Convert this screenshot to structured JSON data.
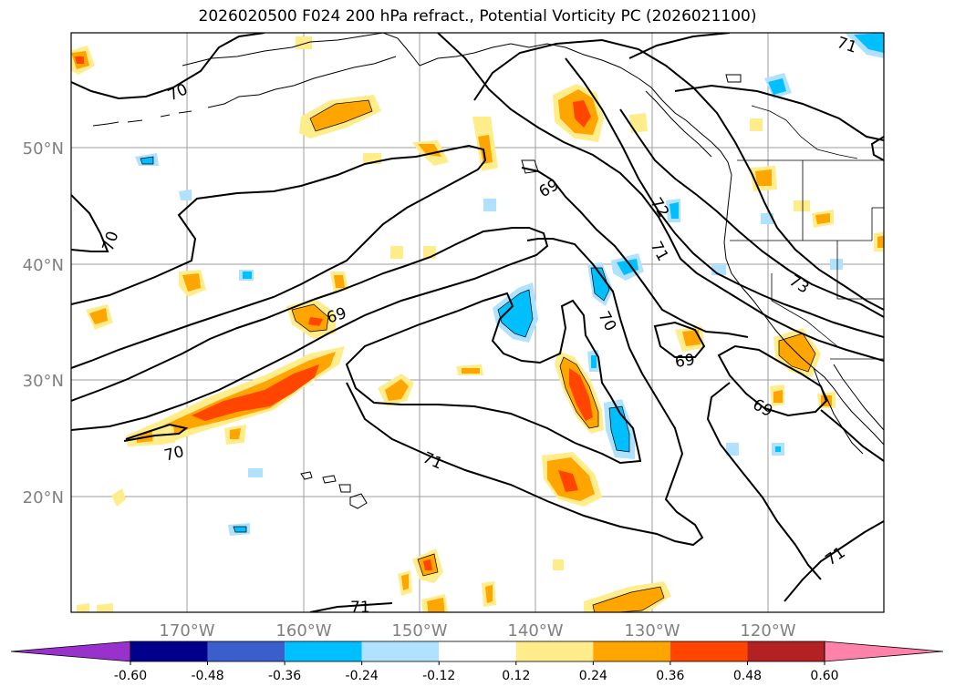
{
  "title": "2026020500 F024 200 hPa refract., Potential Vorticity PC (2026021100)",
  "map": {
    "lat_ticks": [
      "50°N",
      "40°N",
      "30°N",
      "20°N"
    ],
    "lon_ticks": [
      "170°W",
      "160°W",
      "150°W",
      "140°W",
      "130°W",
      "120°W"
    ],
    "contour_labels": [
      "70",
      "70",
      "69",
      "69",
      "72",
      "71",
      "73",
      "70",
      "69",
      "69",
      "71",
      "70",
      "71",
      "71",
      "71"
    ]
  },
  "colorbar": {
    "ticks": [
      "-0.60",
      "-0.48",
      "-0.36",
      "-0.24",
      "-0.12",
      "0.12",
      "0.24",
      "0.36",
      "0.48",
      "0.60"
    ],
    "colors": [
      "#9932cc",
      "#00008b",
      "#3a5fcd",
      "#00bfff",
      "#b0e2ff",
      "#ffffff",
      "#ffec8b",
      "#ffa500",
      "#ff4500",
      "#b22222",
      "#ff82ab"
    ]
  },
  "fill_colors": {
    "light_yellow": "#ffec8b",
    "orange": "#ffa500",
    "red_orange": "#ff4500",
    "deep_sky_blue": "#00bfff",
    "light_blue": "#b0e2ff"
  }
}
